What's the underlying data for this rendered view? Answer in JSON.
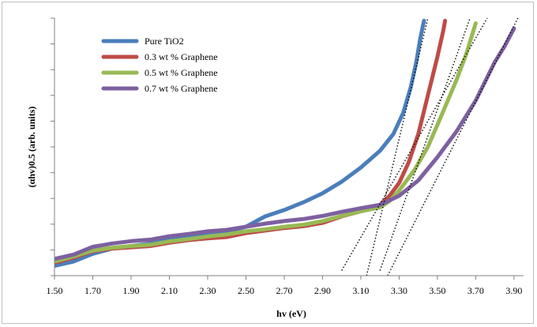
{
  "chart_data": {
    "type": "line",
    "xlabel": "hv (eV)",
    "ylabel": "(αhv)0.5  (arb. units)",
    "xlim": [
      1.5,
      3.95
    ],
    "ylim": [
      0,
      10
    ],
    "x_ticks": [
      "1.50",
      "1.70",
      "1.90",
      "2.10",
      "2.30",
      "2.50",
      "2.70",
      "2.90",
      "3.10",
      "3.30",
      "3.50",
      "3.70",
      "3.90"
    ],
    "y_ticks_labeled": false,
    "grid": false,
    "legend_position": "top-left",
    "series": [
      {
        "name": "Pure TiO2",
        "color": "#4a7ebb",
        "points": [
          [
            1.5,
            0.38
          ],
          [
            1.6,
            0.55
          ],
          [
            1.7,
            0.85
          ],
          [
            1.8,
            1.05
          ],
          [
            1.9,
            1.15
          ],
          [
            2.0,
            1.25
          ],
          [
            2.1,
            1.4
          ],
          [
            2.2,
            1.5
          ],
          [
            2.3,
            1.58
          ],
          [
            2.4,
            1.7
          ],
          [
            2.5,
            1.9
          ],
          [
            2.6,
            2.3
          ],
          [
            2.7,
            2.55
          ],
          [
            2.8,
            2.85
          ],
          [
            2.9,
            3.2
          ],
          [
            3.0,
            3.65
          ],
          [
            3.1,
            4.2
          ],
          [
            3.2,
            4.85
          ],
          [
            3.27,
            5.5
          ],
          [
            3.32,
            6.3
          ],
          [
            3.36,
            7.3
          ],
          [
            3.39,
            8.3
          ],
          [
            3.41,
            9.2
          ],
          [
            3.43,
            9.9
          ]
        ]
      },
      {
        "name": "0.3 wt % Graphene",
        "color": "#be4b48",
        "points": [
          [
            1.5,
            0.5
          ],
          [
            1.6,
            0.7
          ],
          [
            1.7,
            0.95
          ],
          [
            1.8,
            1.05
          ],
          [
            1.9,
            1.1
          ],
          [
            2.0,
            1.15
          ],
          [
            2.1,
            1.28
          ],
          [
            2.2,
            1.38
          ],
          [
            2.3,
            1.45
          ],
          [
            2.4,
            1.5
          ],
          [
            2.5,
            1.65
          ],
          [
            2.6,
            1.75
          ],
          [
            2.7,
            1.85
          ],
          [
            2.8,
            1.92
          ],
          [
            2.9,
            2.05
          ],
          [
            3.0,
            2.3
          ],
          [
            3.1,
            2.5
          ],
          [
            3.2,
            2.75
          ],
          [
            3.25,
            3.1
          ],
          [
            3.3,
            3.6
          ],
          [
            3.35,
            4.4
          ],
          [
            3.4,
            5.5
          ],
          [
            3.45,
            7.0
          ],
          [
            3.5,
            8.5
          ],
          [
            3.53,
            9.5
          ],
          [
            3.54,
            9.9
          ]
        ]
      },
      {
        "name": "0.5 wt % Graphene",
        "color": "#98b954",
        "points": [
          [
            1.5,
            0.55
          ],
          [
            1.6,
            0.75
          ],
          [
            1.7,
            0.98
          ],
          [
            1.8,
            1.08
          ],
          [
            1.9,
            1.15
          ],
          [
            2.0,
            1.2
          ],
          [
            2.1,
            1.33
          ],
          [
            2.2,
            1.42
          ],
          [
            2.3,
            1.52
          ],
          [
            2.4,
            1.6
          ],
          [
            2.5,
            1.72
          ],
          [
            2.6,
            1.8
          ],
          [
            2.7,
            1.9
          ],
          [
            2.8,
            1.98
          ],
          [
            2.9,
            2.12
          ],
          [
            3.0,
            2.32
          ],
          [
            3.1,
            2.5
          ],
          [
            3.2,
            2.65
          ],
          [
            3.25,
            2.9
          ],
          [
            3.3,
            3.3
          ],
          [
            3.38,
            4.1
          ],
          [
            3.45,
            5.0
          ],
          [
            3.52,
            6.2
          ],
          [
            3.6,
            7.6
          ],
          [
            3.65,
            8.6
          ],
          [
            3.7,
            9.8
          ]
        ]
      },
      {
        "name": "0.7 wt % Graphene",
        "color": "#7d60a0",
        "points": [
          [
            1.5,
            0.65
          ],
          [
            1.6,
            0.82
          ],
          [
            1.7,
            1.12
          ],
          [
            1.8,
            1.25
          ],
          [
            1.9,
            1.34
          ],
          [
            2.0,
            1.4
          ],
          [
            2.1,
            1.53
          ],
          [
            2.2,
            1.62
          ],
          [
            2.3,
            1.72
          ],
          [
            2.4,
            1.78
          ],
          [
            2.5,
            1.9
          ],
          [
            2.6,
            2.02
          ],
          [
            2.7,
            2.12
          ],
          [
            2.8,
            2.2
          ],
          [
            2.9,
            2.32
          ],
          [
            3.0,
            2.48
          ],
          [
            3.1,
            2.62
          ],
          [
            3.2,
            2.75
          ],
          [
            3.3,
            3.1
          ],
          [
            3.4,
            3.7
          ],
          [
            3.5,
            4.6
          ],
          [
            3.6,
            5.6
          ],
          [
            3.7,
            6.8
          ],
          [
            3.8,
            8.3
          ],
          [
            3.85,
            8.9
          ],
          [
            3.9,
            9.6
          ]
        ]
      }
    ],
    "tangent_lines": [
      {
        "points": [
          [
            3.0,
            0.2
          ],
          [
            3.76,
            10.0
          ]
        ]
      },
      {
        "points": [
          [
            3.13,
            0.0
          ],
          [
            3.45,
            10.0
          ]
        ]
      },
      {
        "points": [
          [
            3.2,
            0.2
          ],
          [
            3.67,
            10.0
          ]
        ]
      },
      {
        "points": [
          [
            3.24,
            0.0
          ],
          [
            3.92,
            10.0
          ]
        ]
      }
    ]
  }
}
